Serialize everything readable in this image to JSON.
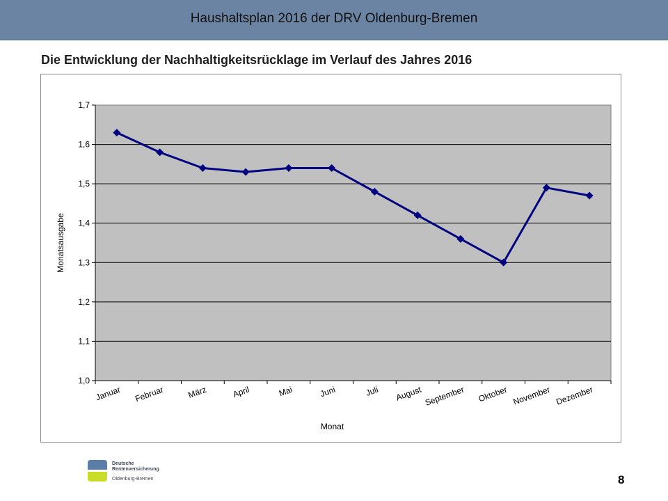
{
  "header": {
    "title": "Haushaltsplan 2016 der DRV Oldenburg-Bremen"
  },
  "chart_heading": "Die Entwicklung der Nachhaltigkeitsrücklage im Verlauf des Jahres 2016",
  "chart_data": {
    "type": "line",
    "title": "Die Entwicklung der Nachhaltigkeitsrücklage im Verlauf des Jahres 2016",
    "xlabel": "Monat",
    "ylabel": "Monatsausgabe",
    "categories": [
      "Januar",
      "Februar",
      "März",
      "April",
      "Mai",
      "Juni",
      "Juli",
      "August",
      "September",
      "Oktober",
      "November",
      "Dezember"
    ],
    "series": [
      {
        "values": [
          1.63,
          1.58,
          1.54,
          1.53,
          1.54,
          1.54,
          1.48,
          1.42,
          1.36,
          1.3,
          1.49,
          1.47
        ]
      }
    ],
    "ylim": [
      1.0,
      1.7
    ],
    "yticks": [
      "1,0",
      "1,1",
      "1,2",
      "1,3",
      "1,4",
      "1,5",
      "1,6",
      "1,7"
    ],
    "grid": true,
    "colors": {
      "line": "#000080",
      "plot_background": "#c0c0c0",
      "gridline": "#000000"
    }
  },
  "logo": {
    "line1": "Deutsche",
    "line2": "Rentenversicherung",
    "line3": "Oldenburg-Bremen"
  },
  "page_number": "8"
}
